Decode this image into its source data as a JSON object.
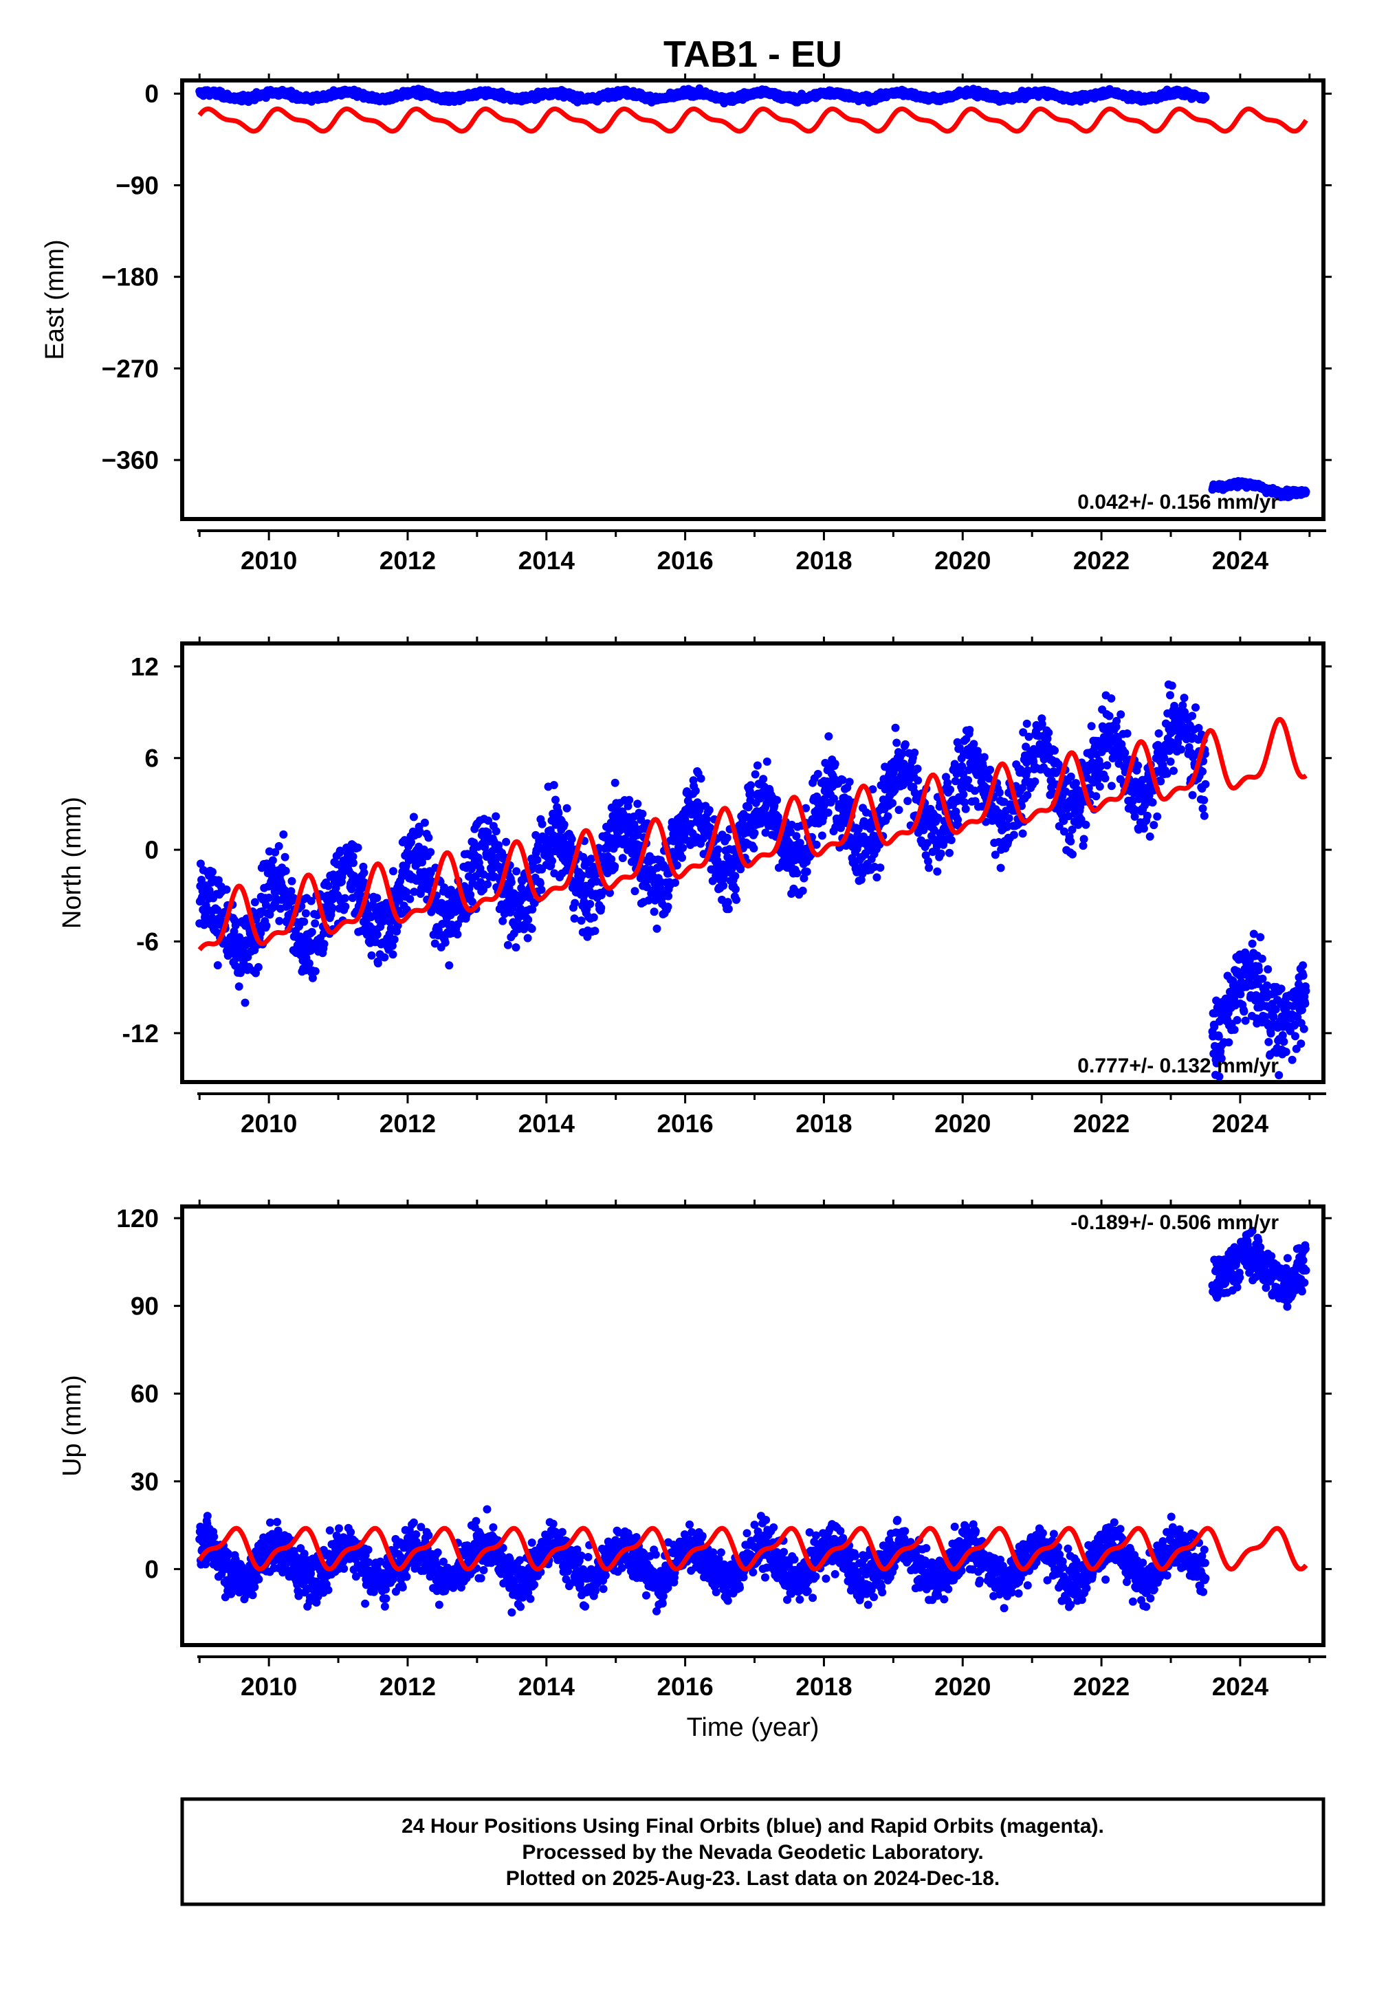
{
  "title": "TAB1 - EU",
  "footer": {
    "lines": [
      "24 Hour Positions Using Final Orbits (blue) and Rapid Orbits (magenta).",
      "Processed by the Nevada Geodetic Laboratory.",
      "Plotted on 2025-Aug-23. Last data on 2024-Dec-18."
    ]
  },
  "colors": {
    "data": "#0000ff",
    "model": "#ff0000",
    "frame": "#000000"
  },
  "chart_data": [
    {
      "type": "scatter",
      "ylabel": "East (mm)",
      "xlabel": "",
      "xlim": [
        2008.75,
        2025.2
      ],
      "ylim": [
        -418,
        13
      ],
      "yticks": [
        0,
        -90,
        -180,
        -270,
        -360
      ],
      "ytick_labels": [
        "0",
        "−90",
        "−180",
        "−270",
        "−360"
      ],
      "xticks": [
        2010,
        2012,
        2014,
        2016,
        2018,
        2020,
        2022,
        2024
      ],
      "xtick_labels": [
        "2010",
        "2012",
        "2014",
        "2016",
        "2018",
        "2020",
        "2022",
        "2024"
      ],
      "rate_label": "0.042+/- 0.156 mm/yr",
      "series": [
        {
          "role": "observed daily positions (blue)",
          "segments": [
            {
              "x_start": 2009.0,
              "x_end": 2023.5,
              "trend_start": -2,
              "trend_end": -2,
              "seasonal_amp": 3,
              "noise": 1.5
            },
            {
              "x_start": 2023.6,
              "x_end": 2024.95,
              "trend_start": -383,
              "trend_end": -392,
              "seasonal_amp": 3,
              "noise": 1.5
            }
          ]
        },
        {
          "role": "model fit (red)",
          "x_start": 2009.0,
          "x_end": 2024.95,
          "trend_start": -26,
          "trend_end": -26,
          "seasonal_amp": 11,
          "seasonal_phase": 0.2
        }
      ]
    },
    {
      "type": "scatter",
      "ylabel": "North (mm)",
      "xlabel": "",
      "xlim": [
        2008.75,
        2025.2
      ],
      "ylim": [
        -15.2,
        13.5
      ],
      "yticks": [
        12,
        6,
        0,
        -6,
        -12
      ],
      "ytick_labels": [
        "12",
        "6",
        "0",
        "-6",
        "-12"
      ],
      "xticks": [
        2010,
        2012,
        2014,
        2016,
        2018,
        2020,
        2022,
        2024
      ],
      "xtick_labels": [
        "2010",
        "2012",
        "2014",
        "2016",
        "2018",
        "2020",
        "2022",
        "2024"
      ],
      "rate_label": "0.777+/- 0.132 mm/yr",
      "series": [
        {
          "role": "observed daily positions (blue)",
          "segments": [
            {
              "x_start": 2009.0,
              "x_end": 2023.5,
              "trend_start": -5.3,
              "trend_end": 6.3,
              "seasonal_amp": 2.2,
              "noise": 1.3
            },
            {
              "x_start": 2023.6,
              "x_end": 2024.95,
              "trend_start": -10.5,
              "trend_end": -9.5,
              "seasonal_amp": 1.8,
              "noise": 1.3
            }
          ]
        },
        {
          "role": "model fit (red)",
          "x_start": 2009.0,
          "x_end": 2024.95,
          "trend_start": -5.3,
          "trend_end": 6.3,
          "seasonal_amp": 2.2,
          "seasonal_phase": 0.55
        }
      ]
    },
    {
      "type": "scatter",
      "ylabel": "Up (mm)",
      "xlabel": "Time (year)",
      "xlim": [
        2008.75,
        2025.2
      ],
      "ylim": [
        -26,
        124
      ],
      "yticks": [
        120,
        90,
        60,
        30,
        0
      ],
      "ytick_labels": [
        "120",
        "90",
        "60",
        "30",
        "0"
      ],
      "xticks": [
        2010,
        2012,
        2014,
        2016,
        2018,
        2020,
        2022,
        2024
      ],
      "xtick_labels": [
        "2010",
        "2012",
        "2014",
        "2016",
        "2018",
        "2020",
        "2022",
        "2024"
      ],
      "rate_label": "-0.189+/- 0.506 mm/yr",
      "series": [
        {
          "role": "observed daily positions (blue)",
          "segments": [
            {
              "x_start": 2009.0,
              "x_end": 2023.5,
              "trend_start": 2,
              "trend_end": 2,
              "seasonal_amp": 6,
              "noise": 4
            },
            {
              "x_start": 2023.6,
              "x_end": 2024.95,
              "trend_start": 103,
              "trend_end": 103,
              "seasonal_amp": 5,
              "noise": 4
            }
          ]
        },
        {
          "role": "model fit (red)",
          "x_start": 2009.0,
          "x_end": 2024.95,
          "trend_start": 7,
          "trend_end": 7,
          "seasonal_amp": 7,
          "seasonal_phase": 0.45
        }
      ]
    }
  ]
}
